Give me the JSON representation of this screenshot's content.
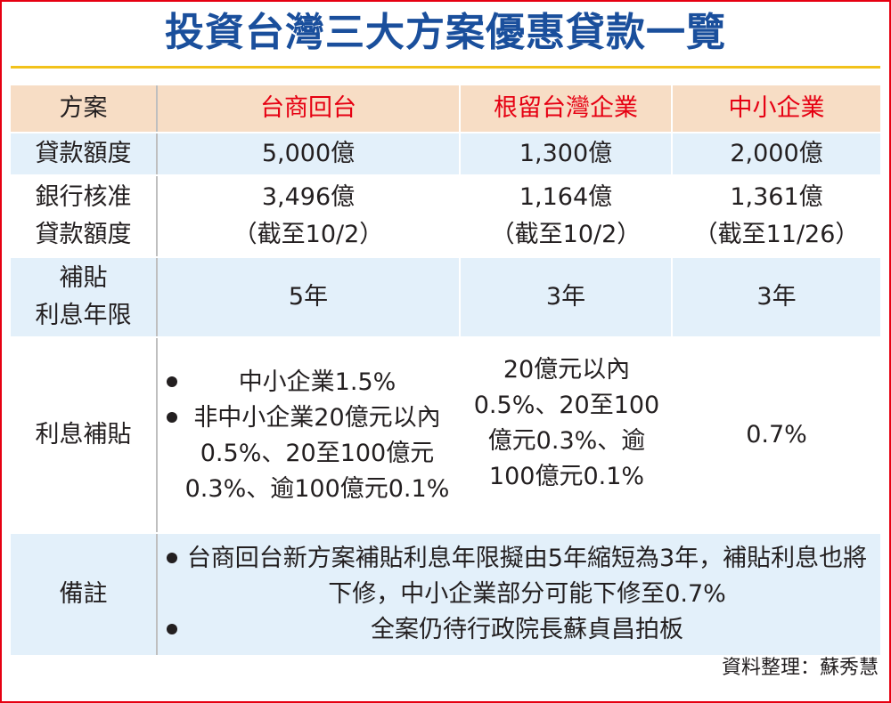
{
  "title": "投資台灣三大方案優惠貸款一覽",
  "header": {
    "label": "方案",
    "plans": [
      "台商回台",
      "根留台灣企業",
      "中小企業"
    ]
  },
  "rows": {
    "loan_amount": {
      "label": "貸款額度",
      "values": [
        "5,000億",
        "1,300億",
        "2,000億"
      ]
    },
    "approved": {
      "label_line1": "銀行核准",
      "label_line2": "貸款額度",
      "values": [
        "3,496億",
        "1,164億",
        "1,361億"
      ],
      "asof": [
        "（截至10/2）",
        "（截至10/2）",
        "（截至11/26）"
      ]
    },
    "subsidy_years": {
      "label_line1": "補貼",
      "label_line2": "利息年限",
      "values": [
        "5年",
        "3年",
        "3年"
      ]
    },
    "interest": {
      "label": "利息補貼",
      "plan1_bullets": [
        "中小企業1.5%",
        "非中小企業20億元以內0.5%、20至100億元0.3%、逾100億元0.1%"
      ],
      "plan2_text": "20億元以內0.5%、20至100億元0.3%、逾100億元0.1%",
      "plan3_text": "0.7%"
    },
    "notes": {
      "label": "備註",
      "bullets": [
        "台商回台新方案補貼利息年限擬由5年縮短為3年，補貼利息也將下修，中小企業部分可能下修至0.7%",
        "全案仍待行政院長蘇貞昌拍板"
      ]
    }
  },
  "credit": "資料整理：蘇秀慧",
  "colors": {
    "title": "#1a4f9c",
    "plan_header": "#e60012",
    "header_bg": "#f7ddc5",
    "band_bg": "#e3f0fa",
    "rule": "#f2c21b",
    "frame": "#e60012"
  }
}
